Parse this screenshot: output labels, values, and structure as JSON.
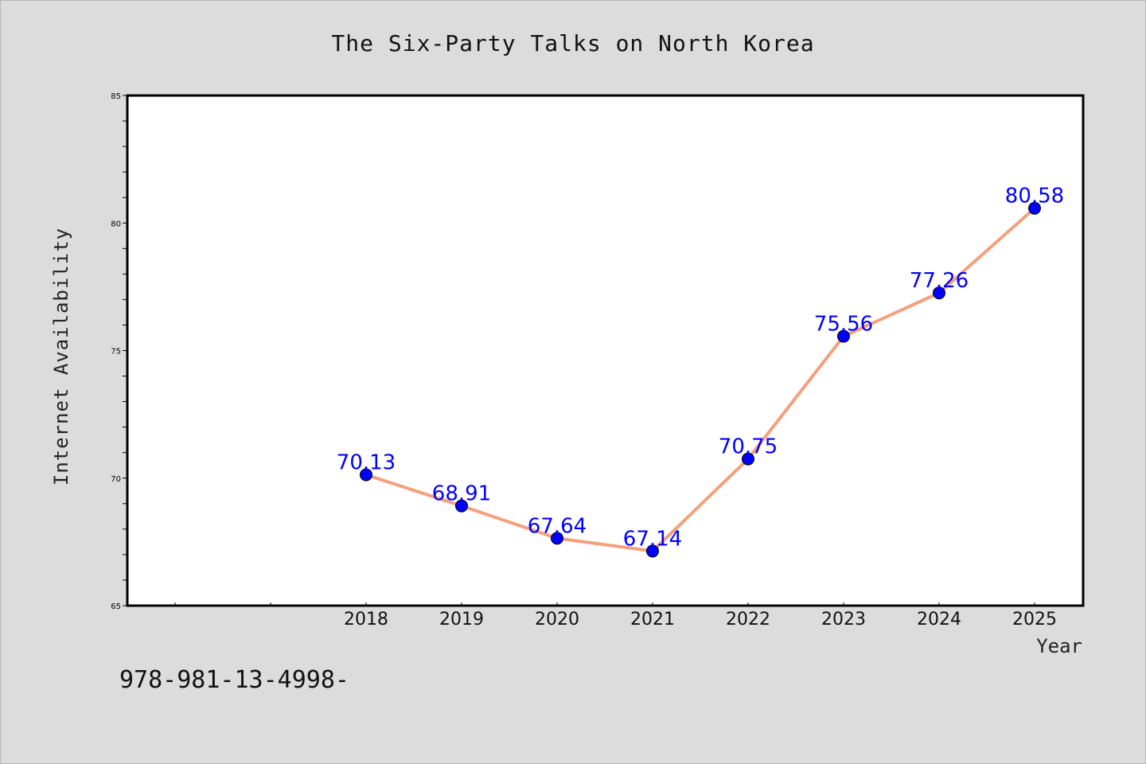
{
  "chart_data": {
    "type": "line",
    "title": "The Six-Party Talks on North Korea",
    "xlabel": "Year",
    "ylabel": "Internet Availability",
    "x": [
      "2018",
      "2019",
      "2020",
      "2021",
      "2022",
      "2023",
      "2024",
      "2025"
    ],
    "series": [
      {
        "values": [
          70.13,
          68.91,
          67.64,
          67.14,
          70.75,
          75.56,
          77.26,
          80.58
        ],
        "labels": [
          "70.13",
          "68.91",
          "67.64",
          "67.14",
          "70.75",
          "75.56",
          "77.26",
          "80.58"
        ],
        "line_color": "#f4a07c",
        "marker_color": "#0000ff"
      }
    ],
    "yticks": [
      "65",
      "70",
      "75",
      "80",
      "85"
    ],
    "ylim": [
      65,
      85
    ],
    "grid": false,
    "legend": "none"
  },
  "annotation": "978-981-13-4998-",
  "colors": {
    "background": "#dcdcdc",
    "plot_background": "#ffffff",
    "axis": "#000000"
  }
}
